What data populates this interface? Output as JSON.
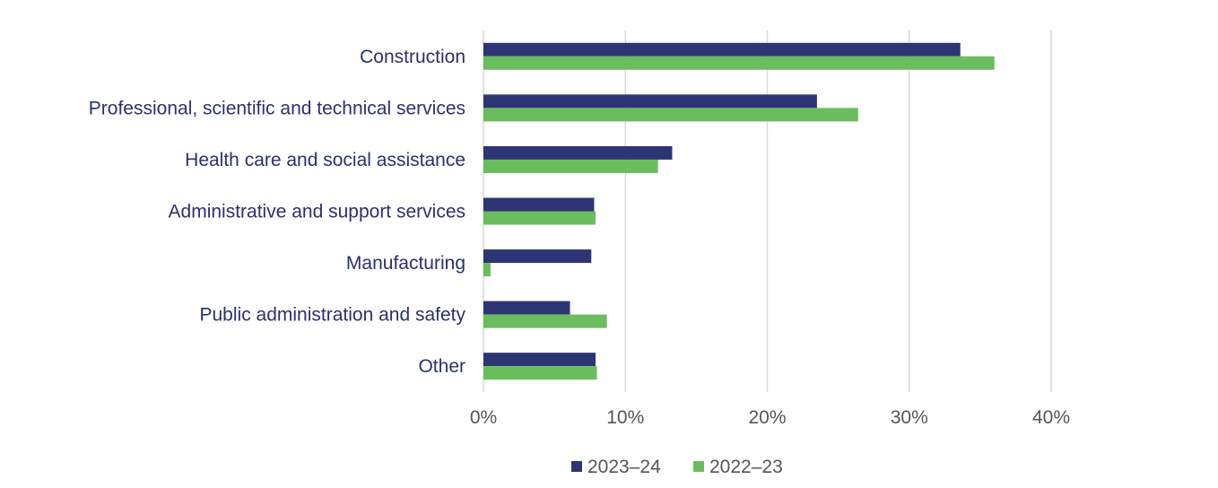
{
  "chart_data": {
    "type": "bar",
    "orientation": "horizontal",
    "title": "",
    "xlabel": "",
    "ylabel": "",
    "categories": [
      "Construction",
      "Professional, scientific and technical services",
      "Health care and social assistance",
      "Administrative and support services",
      "Manufacturing",
      "Public administration and safety",
      "Other"
    ],
    "series": [
      {
        "name": "2023–24",
        "color": "#2e3575",
        "values": [
          33.6,
          23.5,
          13.3,
          7.8,
          7.6,
          6.1,
          7.9
        ]
      },
      {
        "name": "2022–23",
        "color": "#6abd5c",
        "values": [
          36.0,
          26.4,
          12.3,
          7.9,
          0.5,
          8.7,
          8.0
        ]
      }
    ],
    "xlim": [
      0,
      40
    ],
    "xticks": [
      0,
      10,
      20,
      30,
      40
    ],
    "xtick_labels": [
      "0%",
      "10%",
      "20%",
      "30%",
      "40%"
    ],
    "grid": true,
    "legend_position": "bottom"
  }
}
